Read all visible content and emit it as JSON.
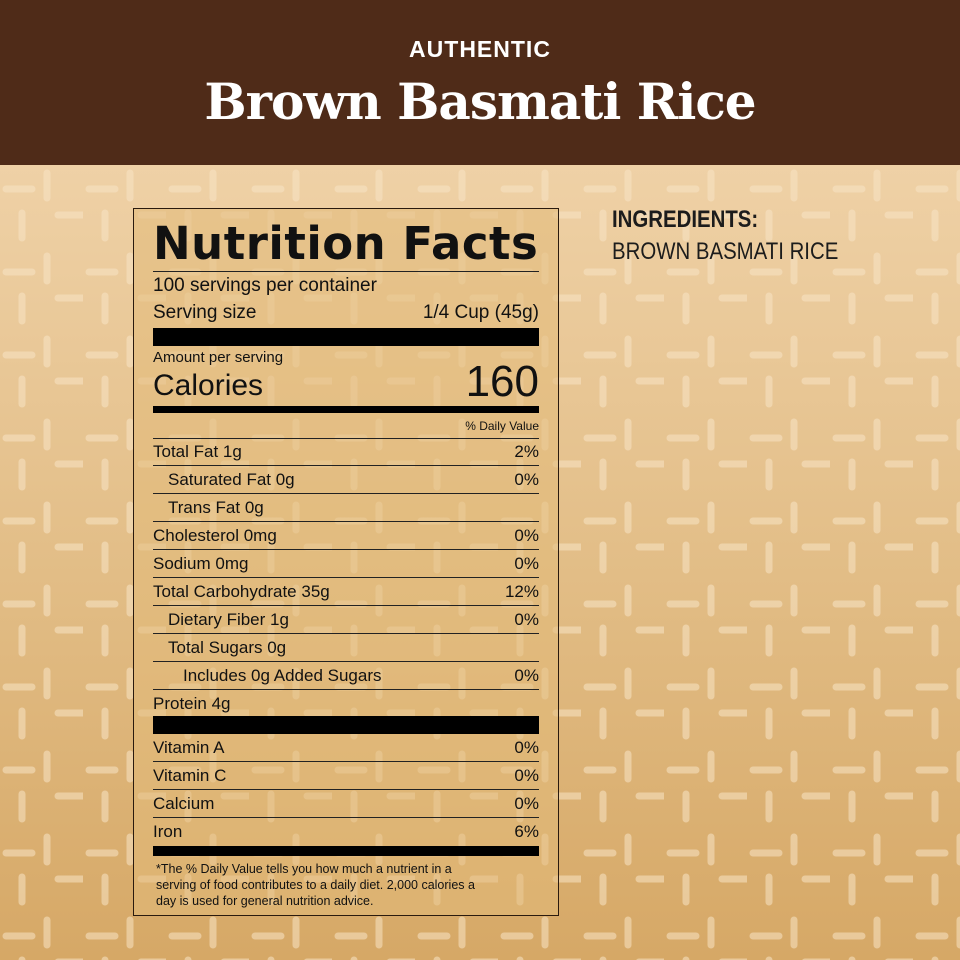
{
  "header": {
    "kicker": "AUTHENTIC",
    "title": "Brown Basmati Rice"
  },
  "ingredients": {
    "heading": "INGREDIENTS:",
    "value": "BROWN BASMATI RICE"
  },
  "label": {
    "title": "Nutrition Facts",
    "servings": "100 servings per container",
    "serving_size_label": "Serving size",
    "serving_size_value": "1/4 Cup (45g)",
    "amount_per_serving": "Amount per serving",
    "calories_label": "Calories",
    "calories_value": "160",
    "dv_header": "% Daily Value",
    "nutrients": [
      {
        "name": "Total Fat 1g",
        "dv": "2%",
        "indent": 0
      },
      {
        "name": "Saturated Fat 0g",
        "dv": "0%",
        "indent": 1
      },
      {
        "name": "Trans Fat 0g",
        "dv": "",
        "indent": 1
      },
      {
        "name": "Cholesterol 0mg",
        "dv": "0%",
        "indent": 0
      },
      {
        "name": "Sodium 0mg",
        "dv": "0%",
        "indent": 0
      },
      {
        "name": "Total Carbohydrate 35g",
        "dv": "12%",
        "indent": 0
      },
      {
        "name": "Dietary Fiber 1g",
        "dv": "0%",
        "indent": 1
      },
      {
        "name": "Total Sugars 0g",
        "dv": "",
        "indent": 1
      },
      {
        "name": "Includes 0g Added Sugars",
        "dv": "0%",
        "indent": 2
      },
      {
        "name": "Protein 4g",
        "dv": "",
        "indent": 0
      }
    ],
    "vitamins": [
      {
        "name": "Vitamin A",
        "dv": "0%"
      },
      {
        "name": "Vitamin C",
        "dv": "0%"
      },
      {
        "name": "Calcium",
        "dv": "0%"
      },
      {
        "name": "Iron",
        "dv": "6%"
      }
    ],
    "footnote": "*The % Daily Value tells you how much a nutrient in a serving of food contributes to a daily diet. 2,000 calories a day is used for general nutrition advice."
  }
}
